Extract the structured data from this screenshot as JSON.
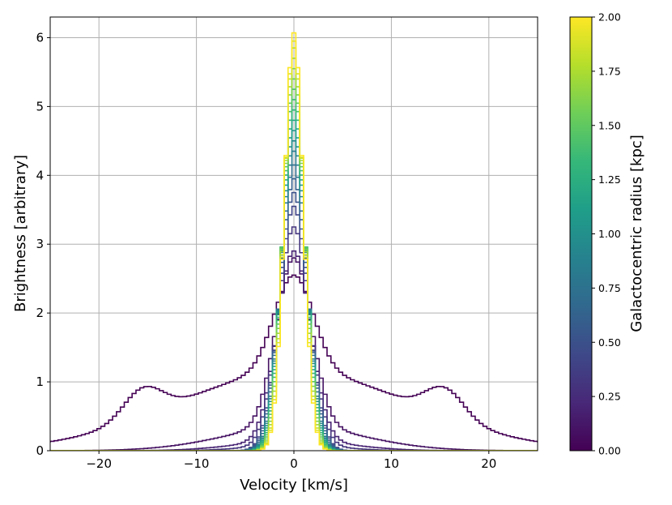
{
  "chart_data": {
    "type": "line",
    "drawstyle": "steps",
    "xlabel": "Velocity [km/s]",
    "ylabel": "Brightness [arbitrary]",
    "xlim": [
      -25,
      25
    ],
    "ylim": [
      0,
      6.3
    ],
    "xticks": [
      -20,
      -10,
      0,
      10,
      20
    ],
    "yticks": [
      0,
      1,
      2,
      3,
      4,
      5,
      6
    ],
    "grid": true,
    "colormap": "viridis",
    "colorbar": {
      "label": "Galactocentric radius [kpc]",
      "range": [
        0,
        2
      ],
      "ticks": [
        "0.00",
        "0.25",
        "0.50",
        "0.75",
        "1.00",
        "1.25",
        "1.50",
        "1.75",
        "2.00"
      ],
      "colors": [
        "#440154",
        "#482878",
        "#3e4989",
        "#31688e",
        "#26828e",
        "#1f9e89",
        "#35b779",
        "#6ece58",
        "#b5de2b",
        "#fde725"
      ]
    },
    "series": [
      {
        "radius": 0.0,
        "peak": 2.55,
        "sigma": 2.0,
        "wing_amp": 1.15,
        "wing_width": 12.0,
        "bump_amp": 0.42,
        "bump_center": 15.5,
        "bump_width": 2.0
      },
      {
        "radius": 0.1,
        "peak": 2.8,
        "sigma": 1.8,
        "wing_amp": 0.35,
        "wing_width": 7.0
      },
      {
        "radius": 0.2,
        "peak": 2.9,
        "sigma": 1.7,
        "wing_amp": 0.15,
        "wing_width": 5.5
      },
      {
        "radius": 0.3,
        "peak": 3.25,
        "sigma": 1.6,
        "wing_amp": 0.08,
        "wing_width": 4.5
      },
      {
        "radius": 0.4,
        "peak": 3.55,
        "sigma": 1.5
      },
      {
        "radius": 0.5,
        "peak": 3.75,
        "sigma": 1.45
      },
      {
        "radius": 0.6,
        "peak": 3.95,
        "sigma": 1.4
      },
      {
        "radius": 0.7,
        "peak": 4.15,
        "sigma": 1.35
      },
      {
        "radius": 0.8,
        "peak": 4.35,
        "sigma": 1.3
      },
      {
        "radius": 0.9,
        "peak": 4.5,
        "sigma": 1.27
      },
      {
        "radius": 1.0,
        "peak": 4.65,
        "sigma": 1.24
      },
      {
        "radius": 1.1,
        "peak": 4.8,
        "sigma": 1.21
      },
      {
        "radius": 1.2,
        "peak": 4.95,
        "sigma": 1.18
      },
      {
        "radius": 1.3,
        "peak": 5.1,
        "sigma": 1.15
      },
      {
        "radius": 1.4,
        "peak": 5.25,
        "sigma": 1.12
      },
      {
        "radius": 1.5,
        "peak": 5.4,
        "sigma": 1.09
      },
      {
        "radius": 1.6,
        "peak": 5.55,
        "sigma": 1.06
      },
      {
        "radius": 1.7,
        "peak": 5.7,
        "sigma": 1.03
      },
      {
        "radius": 1.8,
        "peak": 5.85,
        "sigma": 1.0
      },
      {
        "radius": 1.9,
        "peak": 5.95,
        "sigma": 0.98
      },
      {
        "radius": 2.0,
        "peak": 6.07,
        "sigma": 0.96
      }
    ],
    "step_width": 0.4
  }
}
